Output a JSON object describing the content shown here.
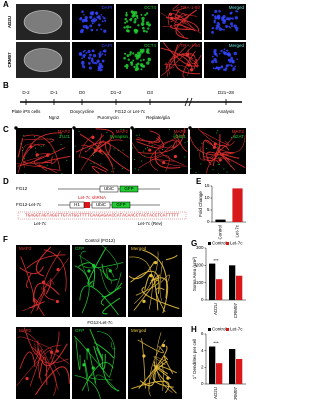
{
  "panels": {
    "A": {
      "label": "A",
      "rows": [
        "AD2U",
        "CRM07"
      ],
      "stains": [
        "DAPI",
        "OCT4",
        "TRA-1-60",
        "Merged"
      ]
    },
    "B": {
      "label": "B",
      "days": [
        "D-2",
        "D-1",
        "D0",
        "D1~2",
        "D3",
        "D21~28"
      ],
      "steps": [
        "Plate iPS cells",
        "Ngn2",
        "Doxycycline",
        "Puromycin",
        "FG12 or Let-7c",
        "Replate/glia",
        "Analysis"
      ]
    },
    "C": {
      "label": "C",
      "stain": "MAP2",
      "markers": [
        "TUJ1",
        "Synapsin",
        "vGlut1",
        "vGAT"
      ]
    },
    "D": {
      "label": "D",
      "constructs": [
        {
          "name": "FG12",
          "parts": [
            "UbiC",
            "GFP"
          ]
        },
        {
          "name": "FG12-Let-7c",
          "parts": [
            "H1",
            "UbiC",
            "GFP"
          ]
        }
      ],
      "shrna": "Let-7c shRNA",
      "sequence": "TGAGGTAGTAGGTTGTATGGTTTTCAAGAGAACCATACAACCTACTACCTCATTTTT",
      "strands": [
        "Let-7c",
        "Let-7c (Rev)"
      ]
    },
    "F": {
      "label": "F",
      "conditions": [
        "Control (FG12)",
        "FG12-Let-7c"
      ],
      "stains": [
        "MAP2",
        "GFP",
        "Merged"
      ]
    }
  },
  "chart_data": [
    {
      "type": "bar",
      "label": "E",
      "y_label": "Fold Change",
      "categories": [
        "Control",
        "Let-7c"
      ],
      "values": [
        1,
        14
      ],
      "colors": [
        "#000000",
        "#d7191c"
      ],
      "ylim": [
        0,
        15
      ],
      "yticks": [
        0,
        5,
        10,
        15
      ]
    },
    {
      "type": "grouped-bar",
      "label": "G",
      "y_label": "Soma Area (μm²)",
      "categories": [
        "AD2U",
        "CRM07"
      ],
      "series": [
        {
          "name": "Control",
          "color": "#000000",
          "values": [
            210,
            200
          ]
        },
        {
          "name": "Let-7c",
          "color": "#d7191c",
          "values": [
            120,
            140
          ]
        }
      ],
      "annotations": [
        "***",
        null
      ],
      "ylim": [
        0,
        300
      ],
      "yticks": [
        0,
        100,
        200,
        300
      ]
    },
    {
      "type": "grouped-bar",
      "label": "H",
      "y_label": "1° Dendrites per cell",
      "categories": [
        "AD2U",
        "CRM07"
      ],
      "series": [
        {
          "name": "Control",
          "color": "#000000",
          "values": [
            4.5,
            4.2
          ]
        },
        {
          "name": "Let-7c",
          "color": "#d7191c",
          "values": [
            2.5,
            3.0
          ]
        }
      ],
      "annotations": [
        "***",
        null
      ],
      "ylim": [
        0,
        6
      ],
      "yticks": [
        0,
        2,
        4,
        6
      ]
    }
  ]
}
